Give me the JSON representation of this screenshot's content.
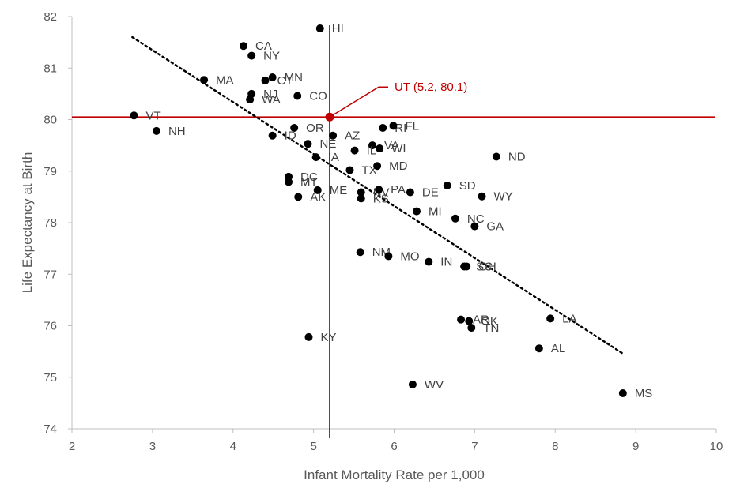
{
  "chart_data": {
    "type": "scatter",
    "xlabel": "Infant Mortality Rate per 1,000",
    "ylabel": "Life Expectancy at Birth",
    "xlim": [
      2,
      10
    ],
    "ylim": [
      74,
      82
    ],
    "xticks": [
      "2",
      "3",
      "4",
      "5",
      "6",
      "7",
      "8",
      "9",
      "10"
    ],
    "yticks": [
      "74",
      "75",
      "76",
      "77",
      "78",
      "79",
      "80",
      "81",
      "82"
    ],
    "grid": false,
    "legend": "none",
    "colors": {
      "points": "#000000",
      "highlight": "#c00000",
      "axis": "#bfbfbf",
      "trend": "#000000"
    },
    "trendline": {
      "style": "dotted",
      "x": [
        2.75,
        8.85
      ],
      "y": [
        81.6,
        75.45
      ]
    },
    "highlight": {
      "label": "UT (5.2, 80.1)",
      "x": 5.2,
      "y": 80.05
    },
    "points": [
      {
        "label": "HI",
        "x": 5.08,
        "y": 81.77
      },
      {
        "label": "CA",
        "x": 4.13,
        "y": 81.43
      },
      {
        "label": "NY",
        "x": 4.23,
        "y": 81.24
      },
      {
        "label": "MA",
        "x": 3.64,
        "y": 80.77
      },
      {
        "label": "CT",
        "x": 4.4,
        "y": 80.76
      },
      {
        "label": "MN",
        "x": 4.49,
        "y": 80.82
      },
      {
        "label": "NJ",
        "x": 4.23,
        "y": 80.5
      },
      {
        "label": "WA",
        "x": 4.21,
        "y": 80.39
      },
      {
        "label": "CO",
        "x": 4.8,
        "y": 80.46
      },
      {
        "label": "VT",
        "x": 2.77,
        "y": 80.08
      },
      {
        "label": "NH",
        "x": 3.05,
        "y": 79.78
      },
      {
        "label": "OR",
        "x": 4.76,
        "y": 79.84
      },
      {
        "label": "ID",
        "x": 4.49,
        "y": 79.69
      },
      {
        "label": "NE",
        "x": 4.93,
        "y": 79.53
      },
      {
        "label": "AZ",
        "x": 5.24,
        "y": 79.69
      },
      {
        "label": "RI",
        "x": 5.86,
        "y": 79.84
      },
      {
        "label": "FL",
        "x": 5.99,
        "y": 79.88
      },
      {
        "label": "VA",
        "x": 5.73,
        "y": 79.5
      },
      {
        "label": "IL",
        "x": 5.51,
        "y": 79.4
      },
      {
        "label": "WI",
        "x": 5.82,
        "y": 79.44
      },
      {
        "label": "IA",
        "x": 5.03,
        "y": 79.27
      },
      {
        "label": "TX",
        "x": 5.45,
        "y": 79.02
      },
      {
        "label": "MD",
        "x": 5.79,
        "y": 79.1
      },
      {
        "label": "ND",
        "x": 7.27,
        "y": 79.28
      },
      {
        "label": "DC",
        "x": 4.69,
        "y": 78.89
      },
      {
        "label": "MT",
        "x": 4.69,
        "y": 78.79
      },
      {
        "label": "ME",
        "x": 5.05,
        "y": 78.63
      },
      {
        "label": "AK",
        "x": 4.81,
        "y": 78.5
      },
      {
        "label": "NV",
        "x": 5.59,
        "y": 78.59
      },
      {
        "label": "KS",
        "x": 5.59,
        "y": 78.47
      },
      {
        "label": "PA",
        "x": 5.81,
        "y": 78.64
      },
      {
        "label": "DE",
        "x": 6.2,
        "y": 78.59
      },
      {
        "label": "SD",
        "x": 6.66,
        "y": 78.72
      },
      {
        "label": "WY",
        "x": 7.09,
        "y": 78.51
      },
      {
        "label": "MI",
        "x": 6.28,
        "y": 78.22
      },
      {
        "label": "NC",
        "x": 6.76,
        "y": 78.08
      },
      {
        "label": "GA",
        "x": 7.0,
        "y": 77.93
      },
      {
        "label": "NM",
        "x": 5.58,
        "y": 77.43
      },
      {
        "label": "MO",
        "x": 5.93,
        "y": 77.35
      },
      {
        "label": "IN",
        "x": 6.43,
        "y": 77.24
      },
      {
        "label": "SC",
        "x": 6.87,
        "y": 77.15
      },
      {
        "label": "OH",
        "x": 6.9,
        "y": 77.15
      },
      {
        "label": "LA",
        "x": 7.94,
        "y": 76.14
      },
      {
        "label": "AR",
        "x": 6.83,
        "y": 76.12
      },
      {
        "label": "OK",
        "x": 6.93,
        "y": 76.09
      },
      {
        "label": "TN",
        "x": 6.96,
        "y": 75.96
      },
      {
        "label": "AL",
        "x": 7.8,
        "y": 75.56
      },
      {
        "label": "KY",
        "x": 4.94,
        "y": 75.78
      },
      {
        "label": "WV",
        "x": 6.23,
        "y": 74.86
      },
      {
        "label": "MS",
        "x": 8.84,
        "y": 74.69
      }
    ]
  }
}
